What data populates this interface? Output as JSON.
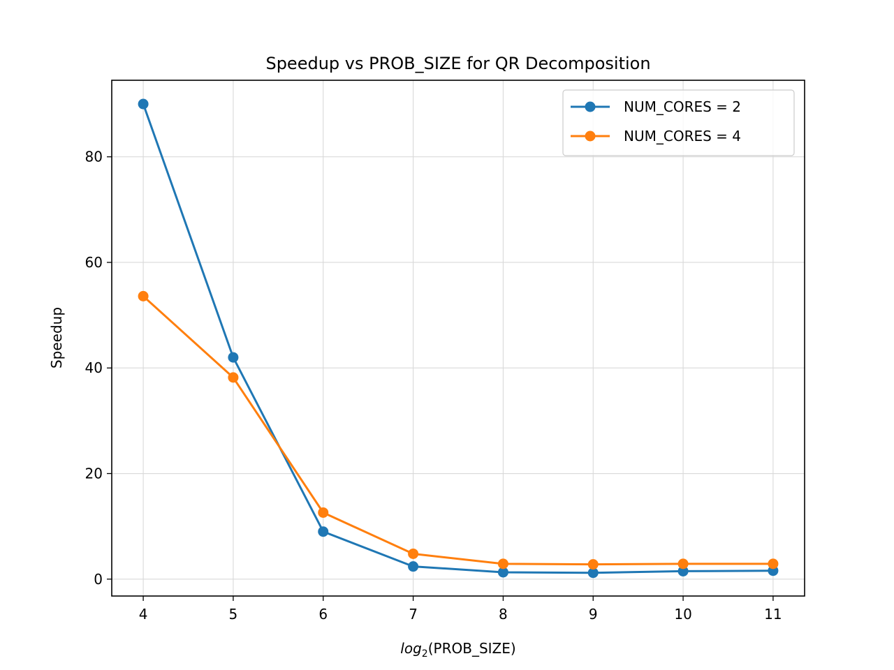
{
  "chart_data": {
    "type": "line",
    "title": "Speedup vs PROB_SIZE for QR Decomposition",
    "xlabel_prefix": "log",
    "xlabel_subscript": "2",
    "xlabel_suffix": "(PROB_SIZE)",
    "ylabel": "Speedup",
    "x": [
      4,
      5,
      6,
      7,
      8,
      9,
      10,
      11
    ],
    "x_ticks": [
      "4",
      "5",
      "6",
      "7",
      "8",
      "9",
      "10",
      "11"
    ],
    "y_ticks": [
      "0",
      "20",
      "40",
      "60",
      "80"
    ],
    "xlim": [
      3.65,
      11.35
    ],
    "ylim": [
      -3.2,
      94.5
    ],
    "grid": true,
    "legend_position": "top-right",
    "series": [
      {
        "name": "NUM_CORES = 2",
        "color": "#1f77b4",
        "values": [
          90.0,
          42.0,
          9.0,
          2.4,
          1.3,
          1.2,
          1.5,
          1.6
        ]
      },
      {
        "name": "NUM_CORES = 4",
        "color": "#ff7f0e",
        "values": [
          53.6,
          38.2,
          12.6,
          4.8,
          2.9,
          2.8,
          2.9,
          2.9
        ]
      }
    ]
  }
}
